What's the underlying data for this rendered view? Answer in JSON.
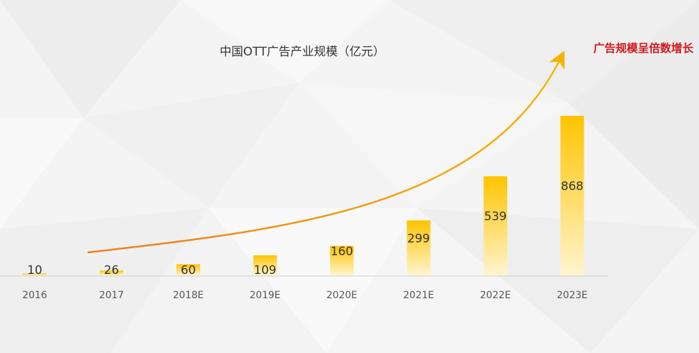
{
  "chart_data": {
    "type": "bar",
    "title": "中国OTT广告产业规模（亿元）",
    "annotation": "广告规模呈倍数增长",
    "categories": [
      "2016",
      "2017",
      "2018E",
      "2019E",
      "2020E",
      "2021E",
      "2022E",
      "2023E"
    ],
    "values": [
      10,
      26,
      60,
      109,
      160,
      299,
      539,
      868
    ],
    "ylim": [
      0,
      868
    ],
    "xlabel": "",
    "ylabel": "",
    "grid": false,
    "legend": "none",
    "colors": {
      "bar_top": "#ffc400",
      "bar_bottom": "#fff4cf",
      "arrow_start": "#f07a1c",
      "arrow_end": "#f5b400",
      "annotation": "#d4161b",
      "text": "#333333"
    }
  }
}
